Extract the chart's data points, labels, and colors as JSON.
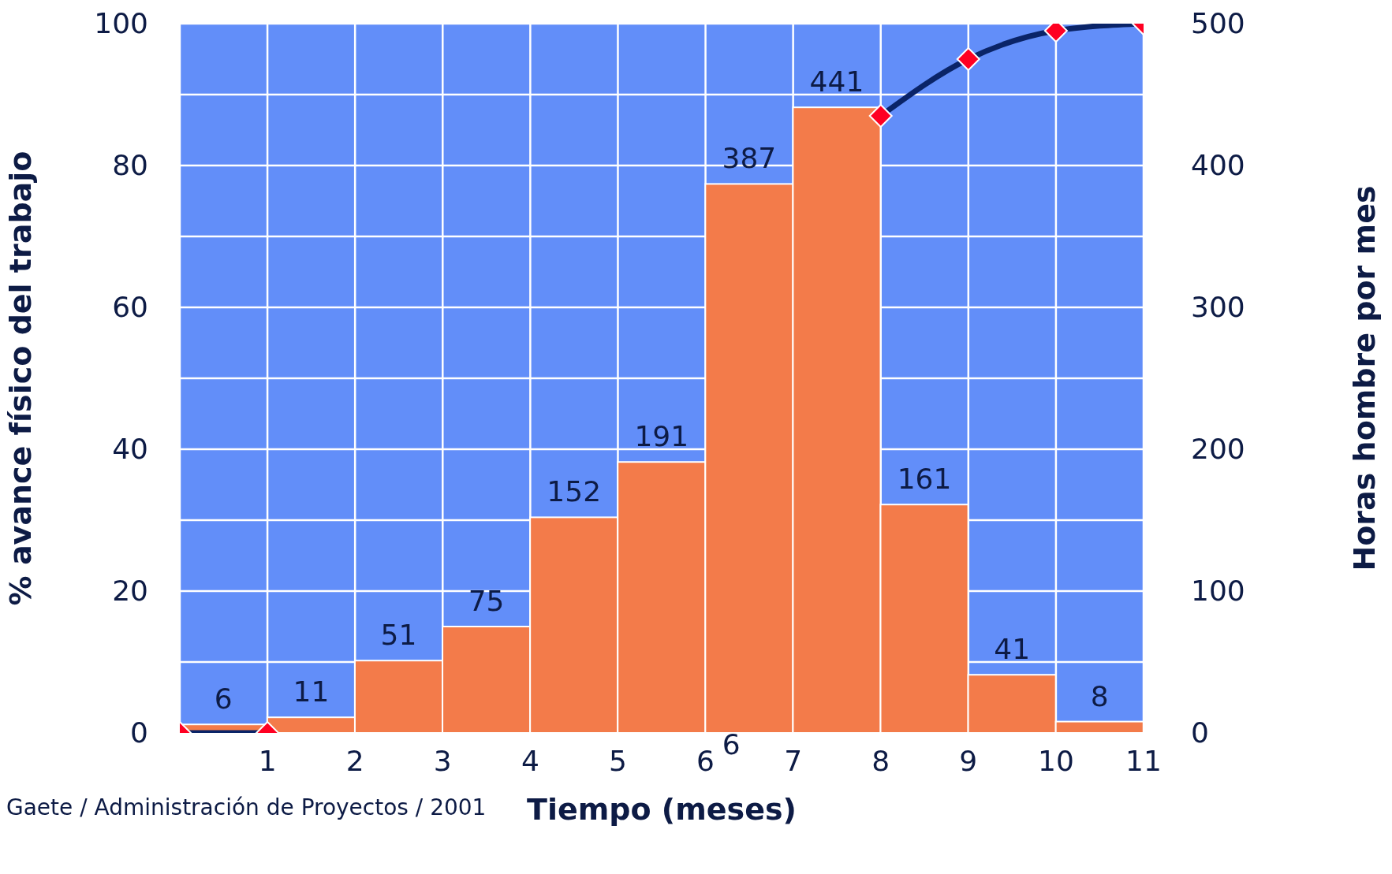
{
  "chart_data": {
    "type": "histogram",
    "xlabel": "Tiempo (meses)",
    "ylabel": "% avance físico del trabajo",
    "y2label": "Horas hombre por mes",
    "bins": [
      0,
      1,
      2,
      3,
      4,
      5,
      6,
      7,
      8,
      9,
      10,
      11
    ],
    "series": [
      {
        "axis": "y2",
        "color": "#f37b4a",
        "values": [
          6,
          11,
          51,
          75,
          152,
          191,
          387,
          441,
          161,
          41,
          8
        ],
        "value_labels": [
          "6",
          "11",
          "51",
          "75",
          "152",
          "191",
          "387",
          "441",
          "161",
          "41",
          "8"
        ]
      },
      {
        "type": "line",
        "axis": "y",
        "color": "#0a2468",
        "x": [
          0,
          1,
          2,
          3,
          4,
          5,
          6,
          7,
          8,
          9,
          10,
          11
        ],
        "values": [
          0,
          0,
          null,
          null,
          null,
          null,
          null,
          null,
          87,
          95,
          99,
          100
        ]
      }
    ],
    "marker": "diamond",
    "grid": true,
    "xlim": [
      0,
      11
    ],
    "xticks": [
      {
        "value": 0,
        "label": null
      },
      1,
      2,
      3,
      4,
      5,
      6,
      7,
      8,
      9,
      10,
      11
    ],
    "ylim": [
      0,
      100
    ],
    "yticks": [
      0,
      {
        "value": 10,
        "label": null
      },
      20,
      {
        "value": 30,
        "label": null
      },
      40,
      {
        "value": 50,
        "label": null
      },
      60,
      {
        "value": 70,
        "label": null
      },
      80,
      {
        "value": 90,
        "label": null
      },
      100
    ],
    "y2lim": [
      0,
      500
    ],
    "y2ticks": [
      0,
      100,
      200,
      300,
      400,
      500
    ],
    "annotations": [
      "6",
      "Gaete / Administración de Proyectos / 2001"
    ]
  }
}
